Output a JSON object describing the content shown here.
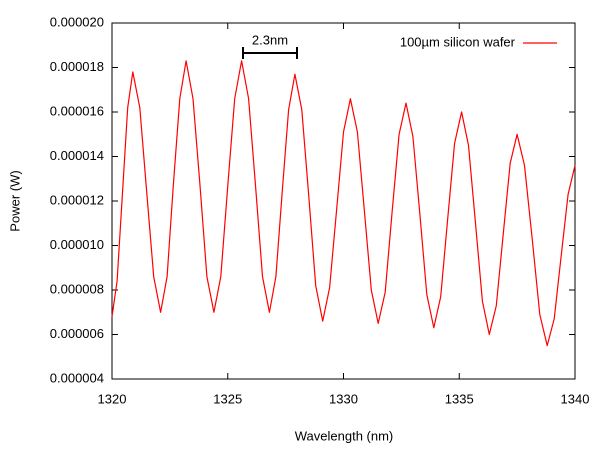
{
  "chart_data": {
    "type": "line",
    "xlabel": "Wavelength (nm)",
    "ylabel": "Power (W)",
    "annotation": "2.3nm",
    "legend": "top-right",
    "grid": false,
    "xlim": [
      1320,
      1340
    ],
    "xticks": [
      1320,
      1325,
      1330,
      1335,
      1340
    ],
    "ylim": [
      4e-06,
      2e-05
    ],
    "yticks": [
      4e-06,
      6e-06,
      8e-06,
      {
        "value": 1e-05,
        "label": "0.000010"
      },
      1.2e-05,
      1.4e-05,
      1.6e-05,
      1.8e-05,
      {
        "value": 2e-05,
        "label": "0.000020"
      }
    ],
    "x": [
      1320.0,
      1320.22,
      1320.45,
      1320.68,
      1320.9,
      1321.2,
      1321.5,
      1321.8,
      1322.1,
      1322.38,
      1322.65,
      1322.93,
      1323.2,
      1323.5,
      1323.8,
      1324.1,
      1324.4,
      1324.7,
      1325.0,
      1325.3,
      1325.6,
      1325.9,
      1326.2,
      1326.5,
      1326.8,
      1327.08,
      1327.35,
      1327.63,
      1327.9,
      1328.2,
      1328.5,
      1328.8,
      1329.1,
      1329.4,
      1329.7,
      1330.0,
      1330.3,
      1330.6,
      1330.9,
      1331.2,
      1331.5,
      1331.8,
      1332.1,
      1332.4,
      1332.7,
      1333.0,
      1333.3,
      1333.6,
      1333.9,
      1334.2,
      1334.5,
      1334.8,
      1335.1,
      1335.4,
      1335.7,
      1336.0,
      1336.3,
      1336.6,
      1336.9,
      1337.2,
      1337.5,
      1337.82,
      1338.15,
      1338.48,
      1338.8,
      1339.1,
      1339.4,
      1339.7,
      1340.0
    ],
    "series": [
      {
        "name": "100µm silicon wafer",
        "color": "#ff0000",
        "values": [
          6.8e-06,
          8.4e-06,
          1.23e-05,
          1.62e-05,
          1.78e-05,
          1.62e-05,
          1.24e-05,
          8.6e-06,
          7e-06,
          8.6e-06,
          1.27e-05,
          1.66e-05,
          1.83e-05,
          1.66e-05,
          1.27e-05,
          8.6e-06,
          7e-06,
          8.6e-06,
          1.27e-05,
          1.66e-05,
          1.83e-05,
          1.66e-05,
          1.27e-05,
          8.6e-06,
          7e-06,
          8.6e-06,
          1.24e-05,
          1.61e-05,
          1.77e-05,
          1.61e-05,
          1.22e-05,
          8.2e-06,
          6.6e-06,
          8.1e-06,
          1.16e-05,
          1.51e-05,
          1.66e-05,
          1.51e-05,
          1.16e-05,
          8e-06,
          6.5e-06,
          7.9e-06,
          1.15e-05,
          1.5e-05,
          1.64e-05,
          1.49e-05,
          1.14e-05,
          7.8e-06,
          6.3e-06,
          7.7e-06,
          1.12e-05,
          1.46e-05,
          1.6e-05,
          1.45e-05,
          1.1e-05,
          7.5e-06,
          6e-06,
          7.3e-06,
          1.05e-05,
          1.37e-05,
          1.5e-05,
          1.36e-05,
          1.03e-05,
          6.9e-06,
          5.5e-06,
          6.7e-06,
          9.5e-06,
          1.23e-05,
          1.36e-05
        ]
      }
    ]
  }
}
